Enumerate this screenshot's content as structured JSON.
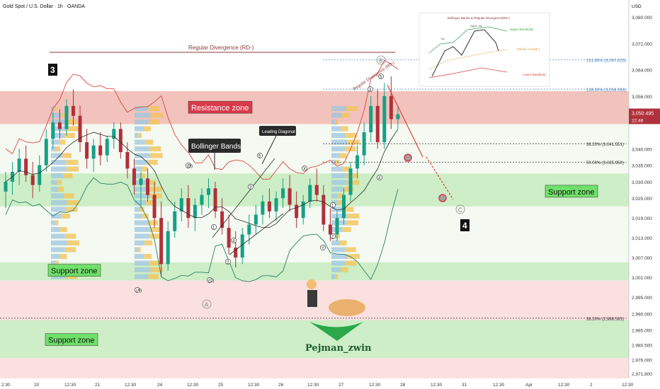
{
  "header": {
    "title": "Gold Spot / U.S. Dollar · 1h · OANDA"
  },
  "currency": "USD",
  "colors": {
    "resistance": "#f0b8b0",
    "support": "#c8ecc0",
    "support_mid": "#e9f2e4",
    "pink_band": "#fbe0e0",
    "candle_up": "#16a086",
    "candle_down": "#b0313b",
    "bollinger": "#d9473f",
    "bollinger_mid": "#2b2b2b",
    "price_tag": "#b0313b",
    "volume_blue": "#9ec5e0",
    "volume_yellow": "#f2c45a"
  },
  "chart_data": {
    "type": "candlestick",
    "title": "",
    "ylabel": "",
    "ylim": [
      2971.8,
      3083
    ],
    "y_ticks": [
      "3,080.000",
      "3,072.000",
      "3,064.000",
      "3,056.000",
      "3,040.000",
      "3,035.000",
      "3,030.000",
      "3,025.000",
      "3,019.000",
      "3,013.000",
      "3,007.000",
      "3,001.000",
      "2,995.000",
      "2,990.000",
      "2,985.000",
      "2,980.500",
      "2,976.000",
      "2,971.800"
    ],
    "x_ticks": [
      "2:30",
      "20",
      "12:30",
      "21",
      "12:30",
      "24",
      "12:30",
      "25",
      "12:30",
      "26",
      "12:30",
      "27",
      "12:30",
      "28",
      "12:30",
      "31",
      "12:30",
      "Apr",
      "12:30",
      "2",
      "12:30"
    ],
    "current_price": "3,050.495",
    "countdown": "22:48",
    "candles": [
      {
        "o": 3027,
        "h": 3033,
        "l": 3022,
        "c": 3030
      },
      {
        "o": 3030,
        "h": 3036,
        "l": 3026,
        "c": 3033
      },
      {
        "o": 3033,
        "h": 3040,
        "l": 3029,
        "c": 3037
      },
      {
        "o": 3037,
        "h": 3041,
        "l": 3030,
        "c": 3032
      },
      {
        "o": 3032,
        "h": 3036,
        "l": 3025,
        "c": 3029
      },
      {
        "o": 3029,
        "h": 3038,
        "l": 3027,
        "c": 3035
      },
      {
        "o": 3035,
        "h": 3046,
        "l": 3033,
        "c": 3043
      },
      {
        "o": 3043,
        "h": 3051,
        "l": 3040,
        "c": 3048
      },
      {
        "o": 3048,
        "h": 3052,
        "l": 3043,
        "c": 3046
      },
      {
        "o": 3046,
        "h": 3055,
        "l": 3044,
        "c": 3053
      },
      {
        "o": 3053,
        "h": 3058,
        "l": 3047,
        "c": 3050
      },
      {
        "o": 3050,
        "h": 3053,
        "l": 3039,
        "c": 3042
      },
      {
        "o": 3042,
        "h": 3046,
        "l": 3034,
        "c": 3037
      },
      {
        "o": 3037,
        "h": 3043,
        "l": 3033,
        "c": 3041
      },
      {
        "o": 3041,
        "h": 3045,
        "l": 3035,
        "c": 3038
      },
      {
        "o": 3038,
        "h": 3044,
        "l": 3036,
        "c": 3043
      },
      {
        "o": 3043,
        "h": 3048,
        "l": 3040,
        "c": 3046
      },
      {
        "o": 3046,
        "h": 3048,
        "l": 3037,
        "c": 3039
      },
      {
        "o": 3039,
        "h": 3042,
        "l": 3031,
        "c": 3034
      },
      {
        "o": 3034,
        "h": 3037,
        "l": 3026,
        "c": 3029
      },
      {
        "o": 3029,
        "h": 3033,
        "l": 3022,
        "c": 3031
      },
      {
        "o": 3031,
        "h": 3034,
        "l": 3024,
        "c": 3026
      },
      {
        "o": 3026,
        "h": 3030,
        "l": 3016,
        "c": 3019
      },
      {
        "o": 3019,
        "h": 3024,
        "l": 3001,
        "c": 3005
      },
      {
        "o": 3005,
        "h": 3018,
        "l": 3003,
        "c": 3015
      },
      {
        "o": 3015,
        "h": 3024,
        "l": 3013,
        "c": 3021
      },
      {
        "o": 3021,
        "h": 3028,
        "l": 3018,
        "c": 3025
      },
      {
        "o": 3025,
        "h": 3029,
        "l": 3016,
        "c": 3019
      },
      {
        "o": 3019,
        "h": 3025,
        "l": 3015,
        "c": 3023
      },
      {
        "o": 3023,
        "h": 3028,
        "l": 3020,
        "c": 3026
      },
      {
        "o": 3026,
        "h": 3031,
        "l": 3022,
        "c": 3028
      },
      {
        "o": 3028,
        "h": 3030,
        "l": 3019,
        "c": 3021
      },
      {
        "o": 3021,
        "h": 3025,
        "l": 3014,
        "c": 3016
      },
      {
        "o": 3016,
        "h": 3020,
        "l": 3008,
        "c": 3010
      },
      {
        "o": 3010,
        "h": 3015,
        "l": 3004,
        "c": 3007
      },
      {
        "o": 3007,
        "h": 3016,
        "l": 3005,
        "c": 3014
      },
      {
        "o": 3014,
        "h": 3020,
        "l": 3011,
        "c": 3017
      },
      {
        "o": 3017,
        "h": 3023,
        "l": 3014,
        "c": 3020
      },
      {
        "o": 3020,
        "h": 3026,
        "l": 3017,
        "c": 3024
      },
      {
        "o": 3024,
        "h": 3028,
        "l": 3019,
        "c": 3021
      },
      {
        "o": 3021,
        "h": 3027,
        "l": 3018,
        "c": 3025
      },
      {
        "o": 3025,
        "h": 3031,
        "l": 3022,
        "c": 3028
      },
      {
        "o": 3028,
        "h": 3032,
        "l": 3021,
        "c": 3023
      },
      {
        "o": 3023,
        "h": 3027,
        "l": 3016,
        "c": 3019
      },
      {
        "o": 3019,
        "h": 3026,
        "l": 3017,
        "c": 3024
      },
      {
        "o": 3024,
        "h": 3031,
        "l": 3022,
        "c": 3029
      },
      {
        "o": 3029,
        "h": 3034,
        "l": 3024,
        "c": 3026
      },
      {
        "o": 3026,
        "h": 3029,
        "l": 3015,
        "c": 3017
      },
      {
        "o": 3017,
        "h": 3022,
        "l": 3012,
        "c": 3014
      },
      {
        "o": 3014,
        "h": 3021,
        "l": 3012,
        "c": 3019
      },
      {
        "o": 3019,
        "h": 3028,
        "l": 3017,
        "c": 3026
      },
      {
        "o": 3026,
        "h": 3036,
        "l": 3024,
        "c": 3034
      },
      {
        "o": 3034,
        "h": 3041,
        "l": 3031,
        "c": 3038
      },
      {
        "o": 3038,
        "h": 3048,
        "l": 3035,
        "c": 3045
      },
      {
        "o": 3045,
        "h": 3056,
        "l": 3042,
        "c": 3053
      },
      {
        "o": 3053,
        "h": 3058,
        "l": 3040,
        "c": 3042
      },
      {
        "o": 3042,
        "h": 3060,
        "l": 3040,
        "c": 3056
      },
      {
        "o": 3056,
        "h": 3062,
        "l": 3046,
        "c": 3049
      },
      {
        "o": 3049,
        "h": 3053,
        "l": 3046,
        "c": 3050.5
      }
    ],
    "zones": [
      {
        "label": "Resistance zone",
        "from": 3047.5,
        "to": 3057.5
      },
      {
        "label": "Support zone",
        "from": 3022.5,
        "to": 3032.5
      },
      {
        "label": "Support zone",
        "from": 3000,
        "to": 3005.5
      },
      {
        "label": "Support zone",
        "from": 2976.5,
        "to": 2988
      }
    ],
    "fib_levels": [
      {
        "label": "161.80% (3,067.020)",
        "value": 3067.02
      },
      {
        "label": "128.20% (3,058.093)",
        "value": 3058.09
      },
      {
        "label": "38.20% (3,041.551)",
        "value": 3041.55
      },
      {
        "label": "50.00% (3,035.950)",
        "value": 3035.95
      },
      {
        "label": "38.20% (2,988.593)",
        "value": 2988.59
      }
    ],
    "annotations": [
      "Regular Divergence (RD-)",
      "Bollinger Bands",
      "Leading Diagonal",
      "Regular Divergence (RD-)",
      "3",
      "4",
      "A",
      "B",
      "C"
    ],
    "wave_labels": [
      "1",
      "2",
      "3",
      "4",
      "5",
      "(A)",
      "(B)",
      "(C)",
      "X",
      "Y"
    ],
    "inset": {
      "title": "Bollinger Bands & Regular Divergence(RD-)",
      "upper": "Upper Band(UB)",
      "middle": "Middle Line(ML)",
      "lower": "Lower Band(LB)",
      "top1": "Top",
      "top2": "Higher Top"
    },
    "watermark": "Pejman_zwin"
  }
}
